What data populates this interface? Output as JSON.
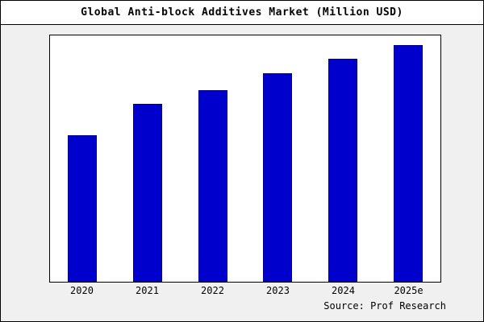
{
  "title": "Global Anti-block Additives Market (Million USD)",
  "source": "Source: Prof Research",
  "colors": {
    "bar_fill": "#0000cd",
    "bar_border": "#00008b",
    "background": "#f0f0f0",
    "plot_background": "#ffffff"
  },
  "chart_data": {
    "type": "bar",
    "categories": [
      "2020",
      "2021",
      "2022",
      "2023",
      "2024",
      "2025e"
    ],
    "values": [
      62,
      75,
      81,
      88,
      94,
      100
    ],
    "title": "Global Anti-block Additives Market (Million USD)",
    "xlabel": "",
    "ylabel": "",
    "ylim": [
      0,
      104
    ],
    "y_axis_visible": false,
    "grid": false,
    "legend": false,
    "annotations": [
      "Source: Prof Research"
    ]
  }
}
